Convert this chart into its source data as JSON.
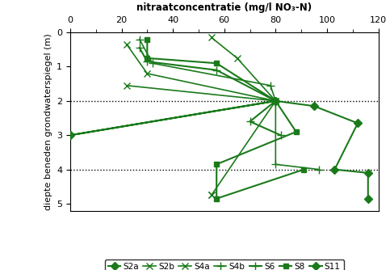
{
  "title": "nitraatconcentratie (mg/l NO₃-N)",
  "ylabel": "diepte beneden grondwaterspiegel (m)",
  "xlim": [
    0,
    120
  ],
  "ylim": [
    5.2,
    0
  ],
  "xticks": [
    0,
    20,
    40,
    60,
    80,
    100,
    120
  ],
  "yticks": [
    0,
    1,
    2,
    3,
    4,
    5
  ],
  "hlines": [
    2,
    4
  ],
  "color": "#1a7a1a",
  "series": {
    "S2a": {
      "x": [
        0,
        80,
        0
      ],
      "y": [
        3.0,
        2.0,
        3.0
      ],
      "marker": "D",
      "ms": 5,
      "lw": 1.5,
      "ls": "-",
      "filled": true,
      "label": "S2a"
    },
    "S2b": {
      "x": [
        22,
        30,
        80,
        22
      ],
      "y": [
        0.35,
        1.2,
        2.0,
        1.55
      ],
      "marker": "x",
      "ms": 6,
      "lw": 1.2,
      "ls": "-",
      "filled": false,
      "label": "S2b"
    },
    "S4a": {
      "x": [
        55,
        65,
        80,
        55,
        55
      ],
      "y": [
        0.15,
        0.75,
        2.0,
        4.75,
        4.75
      ],
      "marker": "x",
      "ms": 6,
      "lw": 1.2,
      "ls": "-",
      "filled": false,
      "label": "S4a"
    },
    "S4b": {
      "x": [
        27,
        32,
        78,
        80,
        80,
        97
      ],
      "y": [
        0.2,
        0.9,
        1.55,
        2.0,
        3.85,
        4.0
      ],
      "marker": "+",
      "ms": 7,
      "lw": 1.2,
      "ls": "-",
      "filled": false,
      "label": "S4b"
    },
    "S6": {
      "x": [
        27,
        30,
        57,
        80,
        70,
        82
      ],
      "y": [
        0.45,
        0.85,
        1.1,
        2.0,
        2.6,
        3.0
      ],
      "marker": "+",
      "ms": 7,
      "lw": 1.5,
      "ls": "-",
      "filled": false,
      "label": "S6"
    },
    "S8": {
      "x": [
        30,
        30,
        57,
        80,
        88,
        57,
        57,
        91
      ],
      "y": [
        0.2,
        0.75,
        0.9,
        2.0,
        2.9,
        3.85,
        4.85,
        4.0
      ],
      "marker": "s",
      "ms": 5,
      "lw": 1.5,
      "ls": "-",
      "filled": true,
      "label": "S8"
    },
    "S11": {
      "x": [
        80,
        95,
        112,
        103,
        116,
        116
      ],
      "y": [
        2.0,
        2.15,
        2.65,
        4.0,
        4.1,
        4.85
      ],
      "marker": "D",
      "ms": 5,
      "lw": 1.5,
      "ls": "-",
      "filled": true,
      "label": "S11"
    }
  },
  "legend_order": [
    "S2a",
    "S2b",
    "S4a",
    "S4b",
    "S6",
    "S8",
    "S11"
  ],
  "legend_markers": {
    "S2a": {
      "marker": "D",
      "ms": 5,
      "filled": true
    },
    "S2b": {
      "marker": "x",
      "ms": 6,
      "filled": false
    },
    "S4a": {
      "marker": "x",
      "ms": 6,
      "filled": false
    },
    "S4b": {
      "marker": "+",
      "ms": 7,
      "filled": false
    },
    "S6": {
      "marker": "+",
      "ms": 7,
      "filled": false
    },
    "S8": {
      "marker": "s",
      "ms": 5,
      "filled": true
    },
    "S11": {
      "marker": "D",
      "ms": 5,
      "filled": true
    }
  }
}
